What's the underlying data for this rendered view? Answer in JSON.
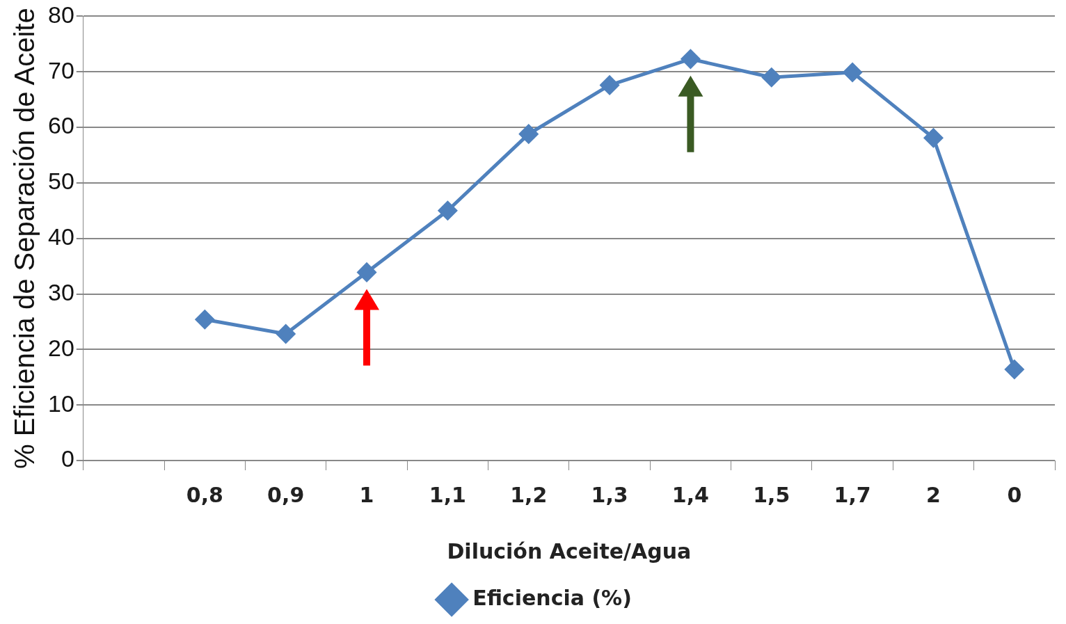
{
  "chart_data": {
    "type": "line",
    "xlabel": "Dilución Aceite/Agua",
    "ylabel": "% Eficiencia de Separación de Aceite",
    "categories": [
      null,
      "0,8",
      "0,9",
      "1",
      "1,1",
      "1,2",
      "1,3",
      "1,4",
      "1,5",
      "1,7",
      "2",
      "0"
    ],
    "series": [
      {
        "name": "Eficiencia (%)",
        "color": "#4f81bd",
        "values": [
          null,
          25.4,
          22.8,
          33.9,
          45,
          58.8,
          67.6,
          72.3,
          69,
          69.9,
          58.1,
          16.4
        ]
      }
    ],
    "ylim": [
      0,
      80
    ],
    "yticks": [
      0,
      10,
      20,
      30,
      40,
      50,
      60,
      70,
      80
    ],
    "grid": "y",
    "legend": "bottom",
    "marker": "diamond",
    "line_style": "solid"
  }
}
